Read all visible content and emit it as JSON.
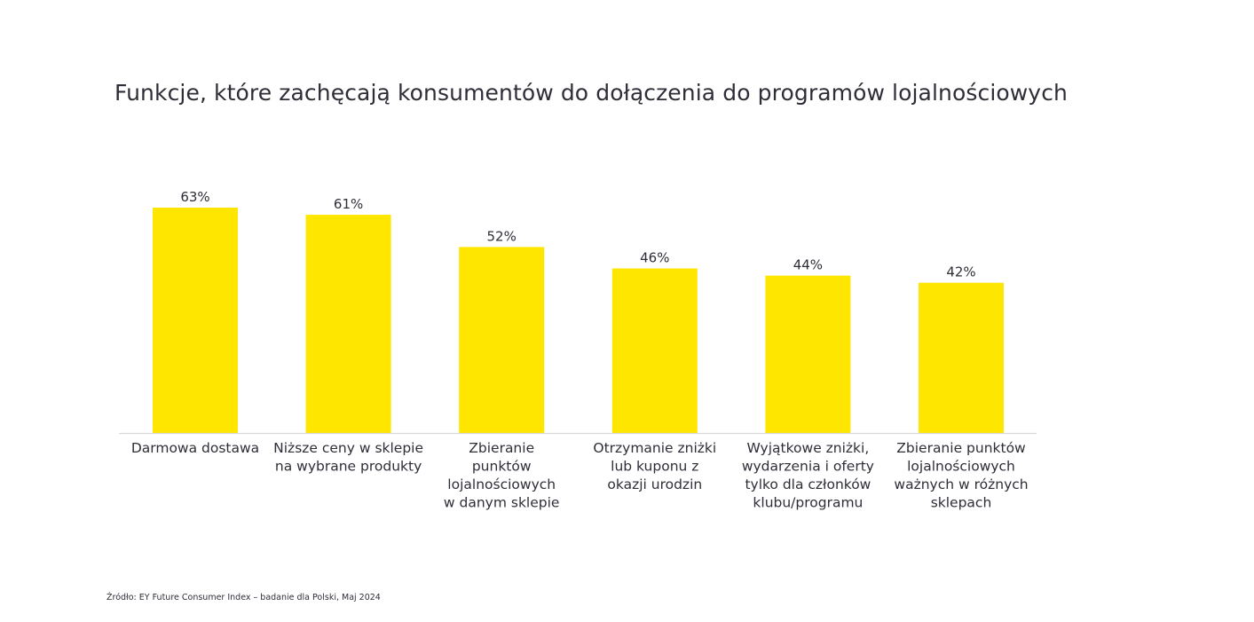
{
  "chart_data": {
    "type": "bar",
    "title": "Funkcje, które zachęcają konsumentów do dołączenia do programów lojalnościowych",
    "categories": [
      [
        "Darmowa dostawa"
      ],
      [
        "Niższe ceny w sklepie",
        "na wybrane produkty"
      ],
      [
        "Zbieranie",
        "punktów",
        "lojalnościowych",
        "w danym sklepie"
      ],
      [
        "Otrzymanie zniżki",
        "lub kuponu z",
        "okazji urodzin"
      ],
      [
        "Wyjątkowe zniżki,",
        "wydarzenia i oferty",
        "tylko dla członków",
        "klubu/programu"
      ],
      [
        "Zbieranie punktów",
        "lojalnościowych",
        "ważnych w różnych",
        "sklepach"
      ]
    ],
    "values": [
      63,
      61,
      52,
      46,
      44,
      42
    ],
    "value_labels": [
      "63%",
      "61%",
      "52%",
      "46%",
      "44%",
      "42%"
    ],
    "bar_color": "#ffe600",
    "grid": false,
    "legend": false
  },
  "footer": {
    "source": "Źródło: EY Future Consumer Index – badanie dla Polski, Maj 2024"
  }
}
